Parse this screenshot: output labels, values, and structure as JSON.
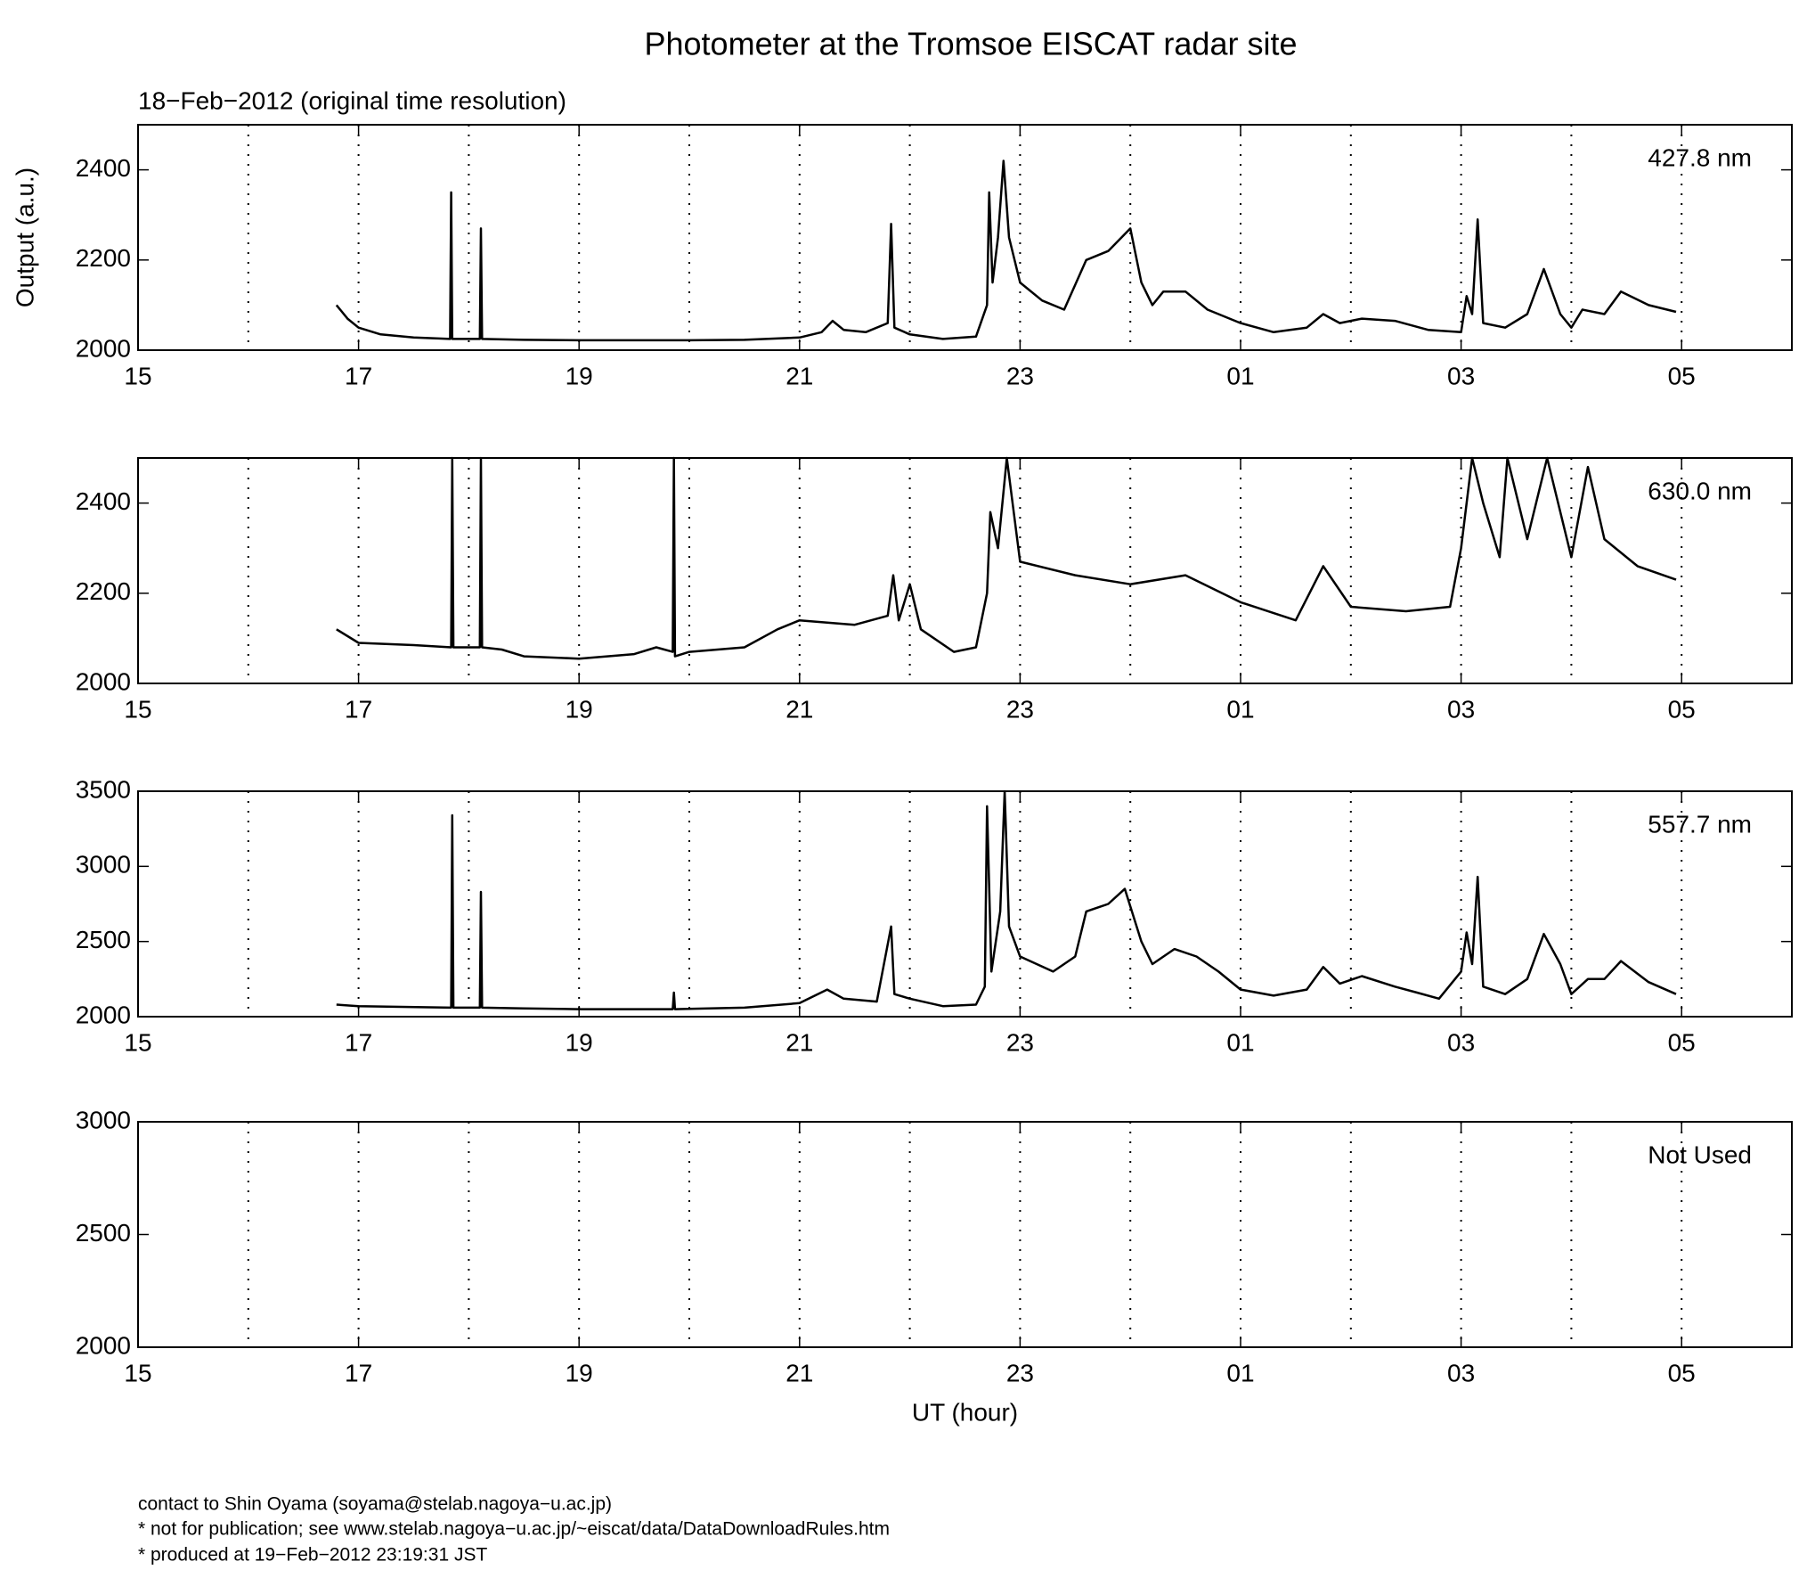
{
  "title": "Photometer at the Tromsoe EISCAT radar site",
  "subtitle": "18−Feb−2012 (original time resolution)",
  "footer": [
    "contact to Shin Oyama (soyama@stelab.nagoya−u.ac.jp)",
    "* not for publication; see www.stelab.nagoya−u.ac.jp/~eiscat/data/DataDownloadRules.htm",
    "* produced at 19−Feb−2012 23:19:31 JST"
  ],
  "chart_data": [
    {
      "type": "line",
      "ylabel": "Output (a.u.)",
      "xlim": [
        15,
        30
      ],
      "xticks": [
        15,
        17,
        19,
        21,
        23,
        {
          "value": 25,
          "label": "01"
        },
        {
          "value": 27,
          "label": "03"
        },
        {
          "value": 29,
          "label": "05"
        }
      ],
      "xgrid": [
        16,
        17,
        18,
        19,
        20,
        21,
        22,
        23,
        24,
        25,
        26,
        27,
        28,
        29
      ],
      "ylim": [
        2000,
        2500
      ],
      "yticks": [
        2000,
        2200,
        2400
      ],
      "series": [
        {
          "name": "427.8 nm",
          "color": "#000000",
          "x": [
            16.8,
            16.9,
            17.0,
            17.2,
            17.5,
            17.83,
            17.84,
            17.85,
            18.1,
            18.11,
            18.12,
            18.5,
            19,
            19.5,
            20,
            20.5,
            21,
            21.2,
            21.3,
            21.4,
            21.6,
            21.8,
            21.83,
            21.86,
            22,
            22.3,
            22.6,
            22.7,
            22.72,
            22.75,
            22.8,
            22.85,
            22.9,
            23,
            23.2,
            23.4,
            23.6,
            23.8,
            24.0,
            24.1,
            24.2,
            24.3,
            24.5,
            24.7,
            25,
            25.3,
            25.6,
            25.75,
            25.9,
            26.1,
            26.4,
            26.7,
            27,
            27.05,
            27.1,
            27.15,
            27.2,
            27.4,
            27.6,
            27.75,
            27.9,
            28,
            28.1,
            28.3,
            28.45,
            28.7,
            28.95
          ],
          "values": [
            2100,
            2070,
            2050,
            2035,
            2028,
            2025,
            2350,
            2025,
            2025,
            2270,
            2025,
            2023,
            2022,
            2022,
            2022,
            2023,
            2028,
            2040,
            2065,
            2045,
            2040,
            2060,
            2280,
            2050,
            2035,
            2025,
            2030,
            2100,
            2350,
            2150,
            2250,
            2420,
            2250,
            2150,
            2110,
            2090,
            2200,
            2220,
            2270,
            2150,
            2100,
            2130,
            2130,
            2090,
            2060,
            2040,
            2050,
            2080,
            2060,
            2070,
            2065,
            2045,
            2040,
            2120,
            2080,
            2290,
            2060,
            2050,
            2080,
            2180,
            2080,
            2050,
            2090,
            2080,
            2130,
            2100,
            2085
          ]
        }
      ]
    },
    {
      "type": "line",
      "xlim": [
        15,
        30
      ],
      "xticks": [
        15,
        17,
        19,
        21,
        23,
        {
          "value": 25,
          "label": "01"
        },
        {
          "value": 27,
          "label": "03"
        },
        {
          "value": 29,
          "label": "05"
        }
      ],
      "xgrid": [
        16,
        17,
        18,
        19,
        20,
        21,
        22,
        23,
        24,
        25,
        26,
        27,
        28,
        29
      ],
      "ylim": [
        2000,
        2500
      ],
      "yticks": [
        2000,
        2200,
        2400
      ],
      "series": [
        {
          "name": "630.0 nm",
          "color": "#000000",
          "x": [
            16.8,
            17,
            17.5,
            17.84,
            17.85,
            17.86,
            18.1,
            18.11,
            18.12,
            18.3,
            18.5,
            19,
            19.5,
            19.7,
            19.85,
            19.86,
            19.87,
            20,
            20.5,
            20.8,
            21,
            21.5,
            21.8,
            21.85,
            21.9,
            22,
            22.1,
            22.4,
            22.6,
            22.7,
            22.73,
            22.8,
            22.88,
            23,
            23.5,
            24,
            24.5,
            25,
            25.5,
            25.75,
            26,
            26.5,
            26.9,
            27,
            27.1,
            27.2,
            27.35,
            27.42,
            27.6,
            27.78,
            28,
            28.15,
            28.3,
            28.6,
            28.95
          ],
          "values": [
            2120,
            2090,
            2085,
            2080,
            2500,
            2080,
            2080,
            2500,
            2080,
            2075,
            2060,
            2055,
            2065,
            2080,
            2070,
            2500,
            2060,
            2070,
            2080,
            2120,
            2140,
            2130,
            2150,
            2240,
            2140,
            2220,
            2120,
            2070,
            2080,
            2200,
            2380,
            2300,
            2500,
            2270,
            2240,
            2220,
            2240,
            2180,
            2140,
            2260,
            2170,
            2160,
            2170,
            2300,
            2500,
            2400,
            2280,
            2500,
            2320,
            2500,
            2280,
            2480,
            2320,
            2260,
            2230
          ]
        }
      ]
    },
    {
      "type": "line",
      "xlim": [
        15,
        30
      ],
      "xticks": [
        15,
        17,
        19,
        21,
        23,
        {
          "value": 25,
          "label": "01"
        },
        {
          "value": 27,
          "label": "03"
        },
        {
          "value": 29,
          "label": "05"
        }
      ],
      "xgrid": [
        16,
        17,
        18,
        19,
        20,
        21,
        22,
        23,
        24,
        25,
        26,
        27,
        28,
        29
      ],
      "ylim": [
        2000,
        3500
      ],
      "yticks": [
        2000,
        2500,
        3000,
        3500
      ],
      "series": [
        {
          "name": "557.7 nm",
          "color": "#000000",
          "x": [
            16.8,
            17,
            17.84,
            17.85,
            17.86,
            18.1,
            18.11,
            18.12,
            18.5,
            19,
            19.5,
            19.85,
            19.86,
            19.87,
            20.5,
            21,
            21.25,
            21.4,
            21.7,
            21.83,
            21.86,
            22,
            22.3,
            22.6,
            22.68,
            22.7,
            22.74,
            22.82,
            22.86,
            22.9,
            23,
            23.3,
            23.5,
            23.6,
            23.8,
            23.95,
            24.1,
            24.2,
            24.4,
            24.6,
            24.8,
            25,
            25.3,
            25.6,
            25.75,
            25.9,
            26.1,
            26.4,
            26.6,
            26.8,
            27,
            27.05,
            27.1,
            27.15,
            27.2,
            27.4,
            27.6,
            27.75,
            27.9,
            28,
            28.15,
            28.3,
            28.45,
            28.7,
            28.95
          ],
          "values": [
            2080,
            2070,
            2060,
            3340,
            2060,
            2060,
            2830,
            2060,
            2055,
            2050,
            2050,
            2050,
            2160,
            2050,
            2060,
            2090,
            2180,
            2120,
            2100,
            2600,
            2150,
            2120,
            2070,
            2080,
            2200,
            3400,
            2300,
            2700,
            3500,
            2600,
            2400,
            2300,
            2400,
            2700,
            2750,
            2850,
            2500,
            2350,
            2450,
            2400,
            2300,
            2180,
            2140,
            2180,
            2330,
            2220,
            2270,
            2200,
            2160,
            2120,
            2300,
            2560,
            2350,
            2930,
            2200,
            2150,
            2250,
            2550,
            2350,
            2150,
            2250,
            2250,
            2370,
            2230,
            2150
          ]
        }
      ]
    },
    {
      "type": "line",
      "xlabel": "UT (hour)",
      "xlim": [
        15,
        30
      ],
      "xticks": [
        15,
        17,
        19,
        21,
        23,
        {
          "value": 25,
          "label": "01"
        },
        {
          "value": 27,
          "label": "03"
        },
        {
          "value": 29,
          "label": "05"
        }
      ],
      "xgrid": [
        16,
        17,
        18,
        19,
        20,
        21,
        22,
        23,
        24,
        25,
        26,
        27,
        28,
        29
      ],
      "ylim": [
        2000,
        3000
      ],
      "yticks": [
        2000,
        2500,
        3000
      ],
      "series": [
        {
          "name": "Not Used",
          "color": "#000000",
          "x": [],
          "values": []
        }
      ]
    }
  ]
}
